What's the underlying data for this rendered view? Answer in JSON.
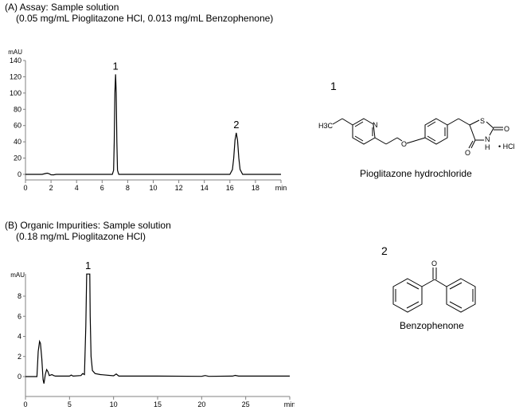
{
  "panel_a": {
    "title_line1": "(A) Assay: Sample solution",
    "title_line2": "(0.05 mg/mL Pioglitazone HCl, 0.013 mg/mL Benzophenone)"
  },
  "panel_b": {
    "title_line1": "(B) Organic Impurities: Sample solution",
    "title_line2": "(0.18 mg/mL Pioglitazone HCl)"
  },
  "compounds": [
    {
      "number": "1",
      "name": "Pioglitazone hydrochloride",
      "atom_labels": {
        "ch3": "H3C",
        "n_ring": "N",
        "o_ether": "O",
        "s": "S",
        "nh_n": "N",
        "nh_h": "H",
        "o1": "O",
        "o2": "O",
        "salt": "• HCl"
      }
    },
    {
      "number": "2",
      "name": "Benzophenone",
      "atom_labels": {
        "o": "O"
      }
    }
  ],
  "chart_data": [
    {
      "type": "line",
      "title": "(A) Assay: Sample solution",
      "ylabel": "mAU",
      "xlabel": "min",
      "xlim": [
        0,
        20
      ],
      "ylim": [
        0,
        140
      ],
      "xticks": [
        "0",
        "2",
        "4",
        "6",
        "8",
        "10",
        "12",
        "14",
        "16",
        "18",
        "min"
      ],
      "yticks": [
        "0",
        "20",
        "40",
        "60",
        "80",
        "100",
        "120",
        "140"
      ],
      "grid": false,
      "line_color": "#000000",
      "peak_labels": [
        {
          "label": "1",
          "x": 7.05,
          "y": 123
        },
        {
          "label": "2",
          "x": 16.5,
          "y": 51
        }
      ],
      "x": [
        0,
        1.3,
        1.55,
        1.7,
        1.85,
        2.0,
        2.2,
        2.4,
        6.8,
        6.9,
        6.95,
        7.0,
        7.05,
        7.1,
        7.15,
        7.2,
        7.3,
        16.0,
        16.2,
        16.3,
        16.4,
        16.5,
        16.6,
        16.7,
        16.8,
        17.0,
        20
      ],
      "y": [
        0,
        0,
        1,
        1.5,
        0.8,
        -0.5,
        -0.6,
        0,
        0,
        5,
        40,
        100,
        123,
        100,
        40,
        5,
        0,
        0,
        6,
        20,
        42,
        51,
        42,
        20,
        6,
        0,
        0
      ]
    },
    {
      "type": "line",
      "title": "(B) Organic Impurities: Sample solution",
      "ylabel": "mAU",
      "xlabel": "min",
      "xlim": [
        0,
        30
      ],
      "ylim": [
        -2,
        10.2
      ],
      "xticks": [
        "0",
        "5",
        "10",
        "15",
        "20",
        "25",
        "min"
      ],
      "yticks": [
        "0",
        "2",
        "4",
        "6",
        "8"
      ],
      "grid": false,
      "line_color": "#000000",
      "peak_labels": [
        {
          "label": "1",
          "x": 7.1,
          "y": 10.2
        }
      ],
      "x": [
        0,
        1.3,
        1.45,
        1.6,
        1.7,
        1.85,
        2.0,
        2.1,
        2.25,
        2.4,
        2.55,
        2.7,
        3.0,
        3.2,
        3.4,
        5.0,
        5.2,
        5.4,
        6.3,
        6.5,
        6.7,
        6.85,
        6.95,
        7.0,
        7.3,
        7.35,
        7.45,
        7.6,
        7.9,
        8.5,
        10.0,
        10.3,
        10.6,
        15,
        20,
        20.4,
        20.8,
        23.5,
        23.8,
        24.2,
        30
      ],
      "y": [
        0,
        0,
        2.5,
        3.5,
        3.3,
        1.8,
        -0.3,
        -0.7,
        0.2,
        0.7,
        0.5,
        0.1,
        0.2,
        0.1,
        0.05,
        0.05,
        0.15,
        0.05,
        0.1,
        0.3,
        0.2,
        5,
        10.2,
        10.2,
        10.2,
        6,
        2,
        0.6,
        0.3,
        0.2,
        0.08,
        0.25,
        0.05,
        0.05,
        0.02,
        0.1,
        0.02,
        0.05,
        0.12,
        0.05,
        0.05
      ]
    }
  ]
}
